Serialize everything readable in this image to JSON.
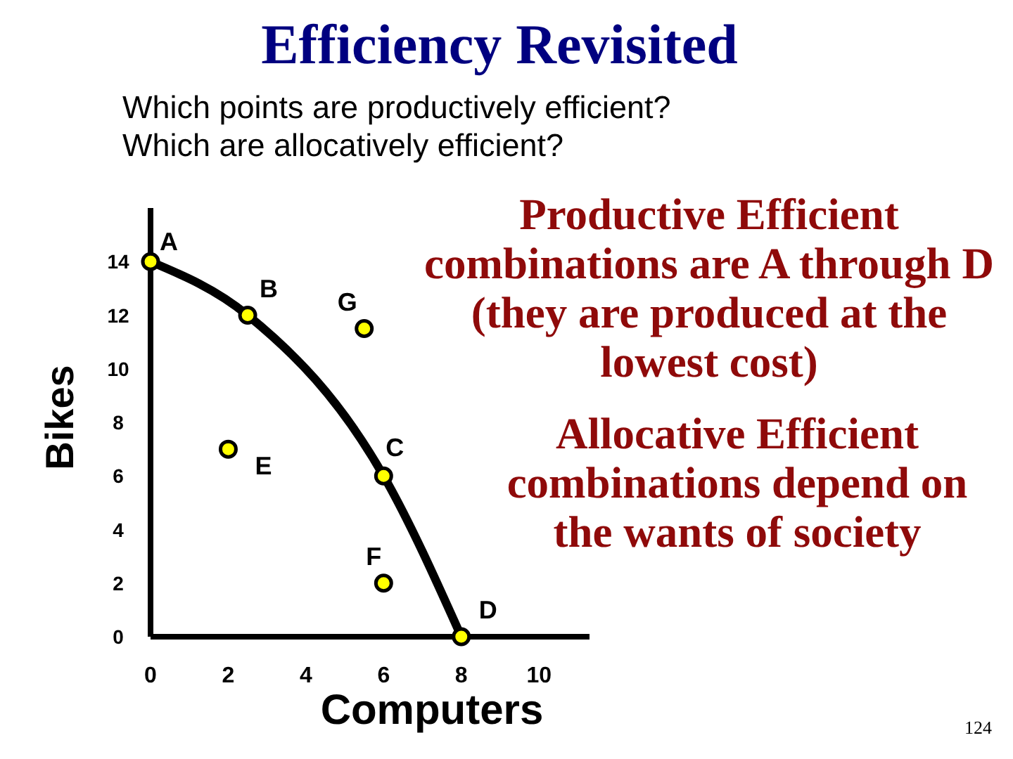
{
  "chart_data": {
    "type": "line",
    "title": "Efficiency Revisited",
    "subtitle": "Which points are productively efficient?\nWhich are allocatively efficient?",
    "xlabel": "Computers",
    "ylabel": "Bikes",
    "series": [
      {
        "type": "line",
        "color": "#000000",
        "x": [
          0,
          2.5,
          6,
          8
        ],
        "values": [
          14,
          12,
          6,
          0
        ],
        "marker": "none",
        "line_style": "solid"
      },
      {
        "type": "scatter",
        "color": "#ffff00",
        "x": [
          0,
          2,
          2.5,
          5.5,
          6,
          6,
          8
        ],
        "values": [
          14,
          7,
          12,
          11.5,
          6,
          2,
          0
        ],
        "marker": "circle"
      }
    ],
    "xlim": [
      0,
      11.3
    ],
    "ylim": [
      0,
      16
    ],
    "xticks": [
      0,
      2,
      4,
      6,
      8,
      10
    ],
    "yticks": [
      0,
      2,
      4,
      6,
      8,
      10,
      12,
      14
    ],
    "grid": false,
    "legend": false,
    "annotations": [
      {
        "text": "A",
        "x": 0,
        "y": 14
      },
      {
        "text": "B",
        "x": 2.5,
        "y": 12
      },
      {
        "text": "G",
        "x": 5.5,
        "y": 11.5
      },
      {
        "text": "C",
        "x": 6,
        "y": 6
      },
      {
        "text": "E",
        "x": 2,
        "y": 7
      },
      {
        "text": "F",
        "x": 6,
        "y": 2
      },
      {
        "text": "D",
        "x": 8,
        "y": 0
      },
      "Productive Efficient\ncombinations are A through D\n(they are produced at the\nlowest cost)",
      "Allocative Efficient\ncombinations depend on\nthe wants of society",
      "124"
    ]
  }
}
